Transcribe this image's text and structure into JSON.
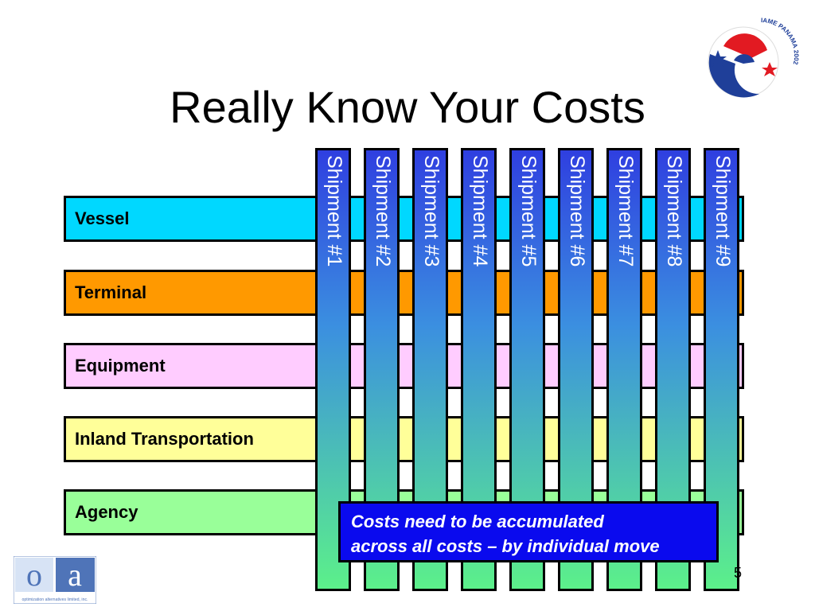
{
  "title": "Really Know Your Costs",
  "rows": [
    {
      "label": "Vessel",
      "color": "#00d8ff"
    },
    {
      "label": "Terminal",
      "color": "#ff9900"
    },
    {
      "label": "Equipment",
      "color": "#ffccff"
    },
    {
      "label": "Inland Transportation",
      "color": "#ffff99"
    },
    {
      "label": "Agency",
      "color": "#99ff99"
    }
  ],
  "shipments": [
    "Shipment #1",
    "Shipment #2",
    "Shipment #3",
    "Shipment #4",
    "Shipment #5",
    "Shipment #6",
    "Shipment #7",
    "Shipment #8",
    "Shipment #9"
  ],
  "note": {
    "line1": "Costs need to be accumulated",
    "line2": "across all costs – by individual move"
  },
  "page_number": "5",
  "logo_left": {
    "letters": [
      "o",
      "a"
    ],
    "tagline": "optimization alternatives limited, inc."
  },
  "logo_right": {
    "text": "IAME PANAMA 2002"
  }
}
